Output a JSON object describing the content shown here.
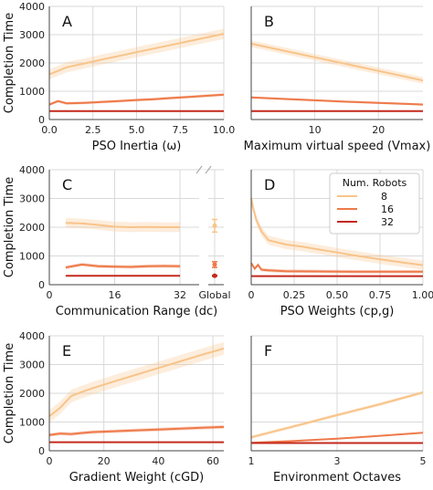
{
  "y_axis_label": "Completion Time",
  "legend": {
    "title": "Num. Robots",
    "entries": [
      {
        "label": "8",
        "color": "#f8c48a"
      },
      {
        "label": "16",
        "color": "#ee7a4a"
      },
      {
        "label": "32",
        "color": "#c3291c"
      }
    ]
  },
  "colors": {
    "grid": "#d9d9d9",
    "axis": "#444444"
  },
  "chart_data": [
    {
      "panel_label": "A",
      "type": "line",
      "xlabel": "PSO Inertia ($\\omega$)",
      "xlabel_display": "PSO Inertia (ω)",
      "xlim": [
        0,
        10
      ],
      "ylim": [
        0,
        4000
      ],
      "xticks": [
        0,
        2.5,
        5,
        7.5,
        10
      ],
      "xtick_labels": [
        "0.0",
        "2.5",
        "5.0",
        "7.5",
        "10.0"
      ],
      "yticks": [
        0,
        1000,
        2000,
        3000,
        4000
      ],
      "ytick_labels": [
        "0",
        "1000",
        "2000",
        "3000",
        "4000"
      ],
      "series": [
        {
          "name": "8",
          "x": [
            0,
            0.5,
            1,
            2,
            3,
            4,
            5,
            6,
            7,
            8,
            9,
            10
          ],
          "y": [
            1600,
            1720,
            1850,
            1980,
            2120,
            2250,
            2380,
            2510,
            2640,
            2770,
            2900,
            3030
          ],
          "band": 180
        },
        {
          "name": "16",
          "x": [
            0,
            0.5,
            1,
            2,
            3,
            4,
            5,
            6,
            7,
            8,
            9,
            10
          ],
          "y": [
            530,
            650,
            570,
            590,
            620,
            650,
            690,
            720,
            760,
            800,
            840,
            880
          ],
          "band": 50
        },
        {
          "name": "32",
          "x": [
            0,
            1,
            2,
            4,
            6,
            8,
            10
          ],
          "y": [
            300,
            300,
            300,
            300,
            300,
            300,
            300
          ],
          "band": 10
        }
      ]
    },
    {
      "panel_label": "B",
      "type": "line",
      "xlabel": "Maximum virtual speed ($V_{\\max}$)",
      "xlabel_display": "Maximum virtual speed (Vmax)",
      "xlim": [
        0,
        27
      ],
      "ylim": [
        0,
        4000
      ],
      "xticks": [
        10,
        20
      ],
      "xtick_labels": [
        "10",
        "20"
      ],
      "yticks": [
        0,
        1000,
        2000,
        3000,
        4000
      ],
      "ytick_labels": [],
      "series": [
        {
          "name": "8",
          "x": [
            0,
            5,
            10,
            15,
            20,
            25,
            27
          ],
          "y": [
            2680,
            2440,
            2200,
            1960,
            1720,
            1480,
            1380
          ],
          "band": 120
        },
        {
          "name": "16",
          "x": [
            0,
            5,
            10,
            15,
            20,
            25,
            27
          ],
          "y": [
            780,
            730,
            680,
            630,
            590,
            550,
            530
          ],
          "band": 40
        },
        {
          "name": "32",
          "x": [
            0,
            10,
            20,
            27
          ],
          "y": [
            300,
            300,
            300,
            300
          ],
          "band": 10
        }
      ]
    },
    {
      "panel_label": "C",
      "type": "line",
      "xlabel": "Communication Range ($d_c$)",
      "xlabel_display": "Communication Range (dc)",
      "xlim": [
        0,
        34
      ],
      "ylim": [
        0,
        4000
      ],
      "xticks": [
        0,
        16,
        32
      ],
      "xtick_labels": [
        "0",
        "16",
        "32"
      ],
      "yticks": [
        0,
        1000,
        2000,
        3000,
        4000
      ],
      "ytick_labels": [
        "0",
        "1000",
        "2000",
        "3000",
        "4000"
      ],
      "global_label": "Global",
      "series": [
        {
          "name": "8",
          "x": [
            4,
            8,
            12,
            16,
            20,
            24,
            28,
            32
          ],
          "y": [
            2150,
            2130,
            2080,
            2020,
            2000,
            2010,
            2000,
            2000
          ],
          "band": 170,
          "global": 2050,
          "global_err": 220
        },
        {
          "name": "16",
          "x": [
            4,
            8,
            12,
            16,
            20,
            24,
            28,
            32
          ],
          "y": [
            600,
            700,
            640,
            630,
            620,
            640,
            650,
            640
          ],
          "band": 60,
          "global": 700,
          "global_err": 100
        },
        {
          "name": "32",
          "x": [
            4,
            8,
            16,
            24,
            32
          ],
          "y": [
            310,
            310,
            310,
            310,
            310
          ],
          "band": 10,
          "global": 310,
          "global_err": 15
        }
      ]
    },
    {
      "panel_label": "D",
      "type": "line",
      "xlabel": "PSO Weights ($c_{p,g}$)",
      "xlabel_display": "PSO Weights (cp,g)",
      "xlim": [
        0,
        1
      ],
      "ylim": [
        0,
        4000
      ],
      "xticks": [
        0,
        0.25,
        0.5,
        0.75,
        1
      ],
      "xtick_labels": [
        "0",
        "0.25",
        "0.50",
        "0.75",
        "1.00"
      ],
      "yticks": [
        0,
        1000,
        2000,
        3000,
        4000
      ],
      "ytick_labels": [],
      "series": [
        {
          "name": "8",
          "x": [
            0,
            0.01,
            0.03,
            0.06,
            0.1,
            0.2,
            0.3,
            0.4,
            0.5,
            0.6,
            0.7,
            0.8,
            0.9,
            1.0
          ],
          "y": [
            3000,
            2700,
            2250,
            1850,
            1550,
            1400,
            1320,
            1220,
            1120,
            1020,
            930,
            840,
            760,
            680
          ],
          "band": 160
        },
        {
          "name": "16",
          "x": [
            0,
            0.02,
            0.04,
            0.06,
            0.1,
            0.2,
            0.4,
            0.6,
            0.8,
            1.0
          ],
          "y": [
            750,
            560,
            690,
            520,
            500,
            470,
            460,
            450,
            450,
            450
          ],
          "band": 60
        },
        {
          "name": "32",
          "x": [
            0,
            0.25,
            0.5,
            0.75,
            1.0
          ],
          "y": [
            300,
            300,
            300,
            300,
            300
          ],
          "band": 10
        }
      ]
    },
    {
      "panel_label": "E",
      "type": "line",
      "xlabel": "Gradient Weight ($c_{GD}$)",
      "xlabel_display": "Gradient Weight (cGD)",
      "xlim": [
        0,
        64
      ],
      "ylim": [
        0,
        4000
      ],
      "xticks": [
        0,
        20,
        40,
        60
      ],
      "xtick_labels": [
        "0",
        "20",
        "40",
        "60"
      ],
      "yticks": [
        0,
        1000,
        2000,
        3000,
        4000
      ],
      "ytick_labels": [
        "0",
        "1000",
        "2000",
        "3000",
        "4000"
      ],
      "series": [
        {
          "name": "8",
          "x": [
            0,
            2,
            4,
            6,
            8,
            12,
            16,
            20,
            24,
            32,
            40,
            48,
            56,
            64
          ],
          "y": [
            1200,
            1350,
            1500,
            1700,
            1900,
            2050,
            2180,
            2300,
            2420,
            2650,
            2880,
            3110,
            3340,
            3560
          ],
          "band": 220
        },
        {
          "name": "16",
          "x": [
            0,
            4,
            8,
            12,
            16,
            24,
            32,
            40,
            48,
            56,
            64
          ],
          "y": [
            550,
            600,
            580,
            620,
            650,
            680,
            710,
            740,
            770,
            800,
            830
          ],
          "band": 60
        },
        {
          "name": "32",
          "x": [
            0,
            16,
            32,
            48,
            64
          ],
          "y": [
            300,
            300,
            300,
            300,
            300
          ],
          "band": 10
        }
      ]
    },
    {
      "panel_label": "F",
      "type": "line",
      "xlabel": "Environment Octaves",
      "xlabel_display": "Environment Octaves",
      "xlim": [
        1,
        5
      ],
      "ylim": [
        0,
        4000
      ],
      "xticks": [
        1,
        3,
        5
      ],
      "xtick_labels": [
        "1",
        "3",
        "5"
      ],
      "yticks": [
        0,
        1000,
        2000,
        3000,
        4000
      ],
      "ytick_labels": [],
      "series": [
        {
          "name": "8",
          "x": [
            1,
            2,
            3,
            4,
            5
          ],
          "y": [
            470,
            850,
            1240,
            1620,
            2030
          ],
          "band": 60
        },
        {
          "name": "16",
          "x": [
            1,
            2,
            3,
            4,
            5
          ],
          "y": [
            280,
            340,
            420,
            520,
            630
          ],
          "band": 25
        },
        {
          "name": "32",
          "x": [
            1,
            3,
            5
          ],
          "y": [
            270,
            270,
            270
          ],
          "band": 8
        }
      ]
    }
  ]
}
